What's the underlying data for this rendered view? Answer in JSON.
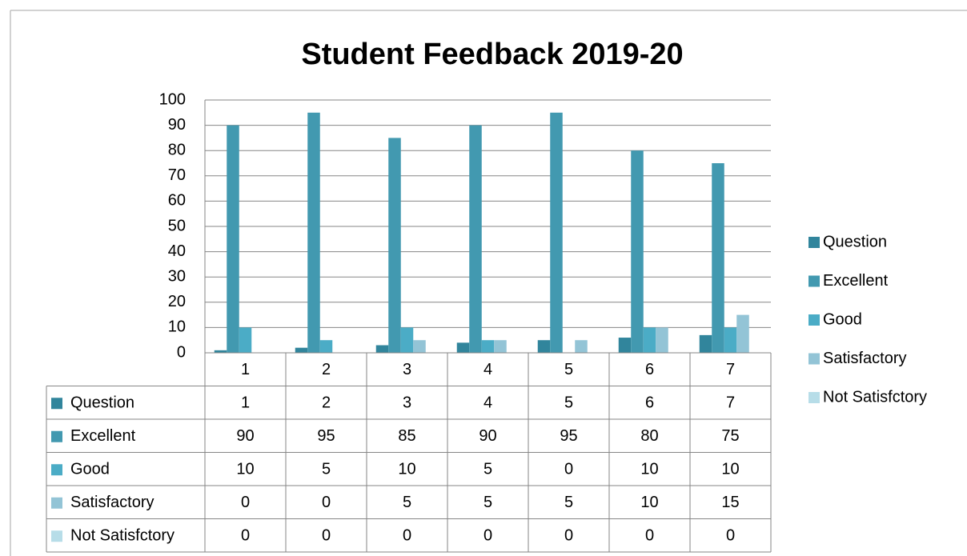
{
  "chart_data": {
    "type": "bar",
    "title": "Student Feedback 2019-20",
    "categories": [
      "1",
      "2",
      "3",
      "4",
      "5",
      "6",
      "7"
    ],
    "series": [
      {
        "name": "Question",
        "color": "#31859c",
        "values": [
          1,
          2,
          3,
          4,
          5,
          6,
          7
        ]
      },
      {
        "name": "Excellent",
        "color": "#4299b0",
        "values": [
          90,
          95,
          85,
          90,
          95,
          80,
          75
        ]
      },
      {
        "name": "Good",
        "color": "#4bacc6",
        "values": [
          10,
          5,
          10,
          5,
          0,
          10,
          10
        ]
      },
      {
        "name": "Satisfactory",
        "color": "#93c4d6",
        "values": [
          0,
          0,
          5,
          5,
          5,
          10,
          15
        ]
      },
      {
        "name": "Not Satisfctory",
        "color": "#b7dde8",
        "values": [
          0,
          0,
          0,
          0,
          0,
          0,
          0
        ]
      }
    ],
    "ylim": [
      0,
      100
    ],
    "yticks": [
      0,
      10,
      20,
      30,
      40,
      50,
      60,
      70,
      80,
      90,
      100
    ],
    "grid": true,
    "legend": "right",
    "data_table": true
  }
}
